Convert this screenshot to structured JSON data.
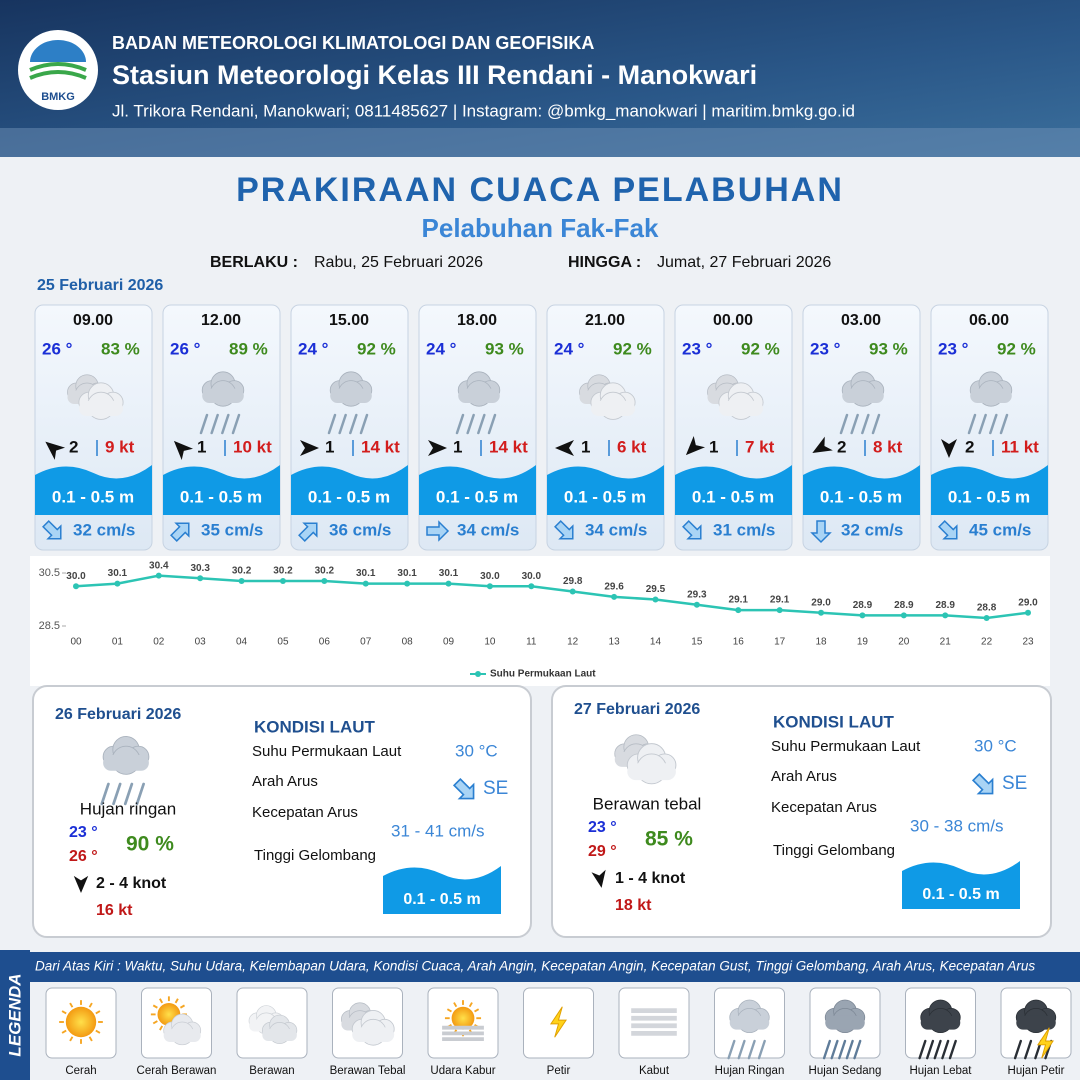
{
  "header": {
    "logo_text": "BMKG",
    "org": "BADAN METEOROLOGI KLIMATOLOGI DAN GEOFISIKA",
    "station": "Stasiun Meteorologi Kelas III Rendani - Manokwari",
    "address": "Jl. Trikora Rendani, Manokwari; 0811485627 | Instagram: @bmkg_manokwari | maritim.bmkg.go.id"
  },
  "title": "PRAKIRAAN CUACA PELABUHAN",
  "subtitle": "Pelabuhan Fak-Fak",
  "validity": {
    "from_label": "BERLAKU :",
    "from": "Rabu, 25 Februari 2026",
    "to_label": "HINGGA :",
    "to": "Jumat, 27 Februari 2026"
  },
  "day1": {
    "date": "25 Februari 2026",
    "slots": [
      {
        "time": "09.00",
        "temp": "26 °",
        "humidity": "83 %",
        "icon": "Berawan Tebal",
        "wind_arrow_deg": -140,
        "wind": "2",
        "gust": "9 kt",
        "wave": "0.1 - 0.5 m",
        "current_arrow_deg": 45,
        "current": "32 cm/s"
      },
      {
        "time": "12.00",
        "temp": "26 °",
        "humidity": "89 %",
        "icon": "Hujan Ringan",
        "wind_arrow_deg": -135,
        "wind": "1",
        "gust": "10 kt",
        "wave": "0.1 - 0.5 m",
        "current_arrow_deg": -45,
        "current": "35 cm/s"
      },
      {
        "time": "15.00",
        "temp": "24 °",
        "humidity": "92 %",
        "icon": "Hujan Ringan",
        "wind_arrow_deg": 0,
        "wind": "1",
        "gust": "14 kt",
        "wave": "0.1 - 0.5 m",
        "current_arrow_deg": -45,
        "current": "36 cm/s"
      },
      {
        "time": "18.00",
        "temp": "24 °",
        "humidity": "93 %",
        "icon": "Hujan Ringan",
        "wind_arrow_deg": 0,
        "wind": "1",
        "gust": "14 kt",
        "wave": "0.1 - 0.5 m",
        "current_arrow_deg": 0,
        "current": "34 cm/s"
      },
      {
        "time": "21.00",
        "temp": "24 °",
        "humidity": "92 %",
        "icon": "Berawan Tebal",
        "wind_arrow_deg": 180,
        "wind": "1",
        "gust": "6 kt",
        "wave": "0.1 - 0.5 m",
        "current_arrow_deg": 45,
        "current": "34 cm/s"
      },
      {
        "time": "00.00",
        "temp": "23 °",
        "humidity": "92 %",
        "icon": "Berawan Tebal",
        "wind_arrow_deg": 135,
        "wind": "1",
        "gust": "7 kt",
        "wave": "0.1 - 0.5 m",
        "current_arrow_deg": 45,
        "current": "31 cm/s"
      },
      {
        "time": "03.00",
        "temp": "23 °",
        "humidity": "93 %",
        "icon": "Hujan Ringan",
        "wind_arrow_deg": 150,
        "wind": "2",
        "gust": "8 kt",
        "wave": "0.1 - 0.5 m",
        "current_arrow_deg": 90,
        "current": "32 cm/s"
      },
      {
        "time": "06.00",
        "temp": "23 °",
        "humidity": "92 %",
        "icon": "Hujan Ringan",
        "wind_arrow_deg": 90,
        "wind": "2",
        "gust": "11 kt",
        "wave": "0.1 - 0.5 m",
        "current_arrow_deg": 45,
        "current": "45 cm/s"
      }
    ]
  },
  "chart_data": {
    "type": "line",
    "x": [
      "00",
      "01",
      "02",
      "03",
      "04",
      "05",
      "06",
      "07",
      "08",
      "09",
      "10",
      "11",
      "12",
      "13",
      "14",
      "15",
      "16",
      "17",
      "18",
      "19",
      "20",
      "21",
      "22",
      "23"
    ],
    "series": [
      {
        "name": "Suhu Permukaan Laut",
        "color": "#2cc4b4",
        "values": [
          30.0,
          30.1,
          30.4,
          30.3,
          30.2,
          30.2,
          30.2,
          30.1,
          30.1,
          30.1,
          30.0,
          30.0,
          29.8,
          29.6,
          29.5,
          29.3,
          29.1,
          29.1,
          29.0,
          28.9,
          28.9,
          28.9,
          28.8,
          29.0
        ],
        "value_labels": [
          "30.0",
          "30.1",
          "30.4",
          "30.3",
          "30.2",
          "30.2",
          "30.2",
          "30.1",
          "30.1",
          "30.1",
          "30.0",
          "30.0",
          "29.8",
          "29.6",
          "29.5",
          "29.3",
          "29.1",
          "29.1",
          "29.0",
          "28.9",
          "28.9",
          "28.9",
          "28.8",
          "29.0"
        ]
      }
    ],
    "ylim": [
      28.5,
      30.5
    ],
    "yticks": [
      28.5,
      30.5
    ],
    "legend": "bottom"
  },
  "panels": [
    {
      "date": "26 Februari 2026",
      "icon": "Hujan Ringan",
      "condition": "Hujan ringan",
      "tmin": "23 °",
      "tmax": "26 °",
      "humidity": "90 %",
      "wind_arrow_deg": 90,
      "wind": "2  - 4 knot",
      "gust": "16 kt",
      "sea_title": "KONDISI LAUT",
      "sst_label": "Suhu Permukaan Laut",
      "sst": "30 °C",
      "dir_label": "Arah Arus",
      "current_arrow_deg": 45,
      "dir": "SE",
      "speed_label": "Kecepatan Arus",
      "speed": "31  - 41 cm/s",
      "wave_label": "Tinggi Gelombang",
      "wave": "0.1 - 0.5 m"
    },
    {
      "date": "27 Februari 2026",
      "icon": "Berawan Tebal",
      "condition": "Berawan tebal",
      "tmin": "23 °",
      "tmax": "29 °",
      "humidity": "85 %",
      "wind_arrow_deg": 80,
      "wind": "1  - 4 knot",
      "gust": "18 kt",
      "sea_title": "KONDISI LAUT",
      "sst_label": "Suhu Permukaan Laut",
      "sst": "30 °C",
      "dir_label": "Arah Arus",
      "current_arrow_deg": 45,
      "dir": "SE",
      "speed_label": "Kecepatan Arus",
      "speed": "30  - 38 cm/s",
      "wave_label": "Tinggi Gelombang",
      "wave": "0.1 - 0.5 m"
    }
  ],
  "legend": {
    "title": "LEGENDA",
    "description": "Dari Atas Kiri : Waktu, Suhu Udara, Kelembapan Udara, Kondisi Cuaca, Arah Angin, Kecepatan Angin, Kecepatan Gust, Tinggi Gelombang, Arah Arus, Kecepatan Arus",
    "items": [
      "Cerah",
      "Cerah Berawan",
      "Berawan",
      "Berawan Tebal",
      "Udara Kabur",
      "Petir",
      "Kabut",
      "Hujan Ringan",
      "Hujan Sedang",
      "Hujan Lebat",
      "Hujan Petir"
    ]
  }
}
